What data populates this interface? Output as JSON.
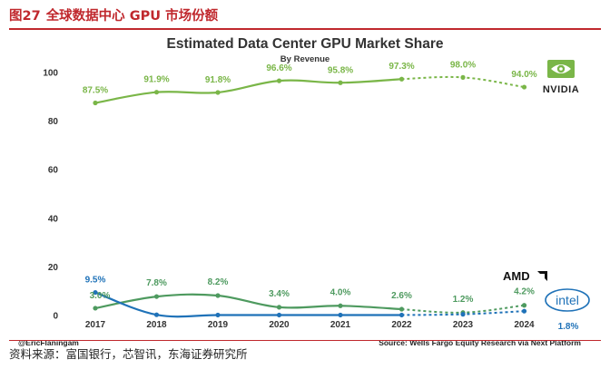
{
  "figure": {
    "number": "图27",
    "caption": "全球数据中心 GPU 市场份额",
    "source_note": "资料来源：富国银行，芯智讯，东海证券研究所"
  },
  "colors": {
    "nvidia": "#7ab648",
    "amd": "#4e9a5f",
    "intel": "#1f72b8",
    "header_red": "#c0282d"
  },
  "logos": {
    "nvidia": "NVIDIA",
    "amd": "AMD",
    "intel": "intel"
  },
  "chart_data": {
    "type": "line",
    "title": "Estimated Data Center GPU Market Share",
    "subtitle": "By Revenue",
    "x": [
      "2017",
      "2018",
      "2019",
      "2020",
      "2021",
      "2022",
      "2023",
      "2024"
    ],
    "ylim": [
      0,
      100
    ],
    "yticks": [
      0,
      20,
      40,
      60,
      80,
      100
    ],
    "grid": false,
    "solid_through": "2022",
    "series": [
      {
        "key": "nvidia",
        "values": [
          87.5,
          91.9,
          91.8,
          96.6,
          95.8,
          97.3,
          98.0,
          94.0
        ],
        "labels": [
          "87.5%",
          "91.9%",
          "91.8%",
          "96.6%",
          "95.8%",
          "97.3%",
          "98.0%",
          "94.0%"
        ]
      },
      {
        "key": "amd",
        "values": [
          3.0,
          7.8,
          8.2,
          3.4,
          4.0,
          2.6,
          1.2,
          4.2
        ],
        "labels": [
          "3.0%",
          "7.8%",
          "8.2%",
          "3.4%",
          "4.0%",
          "2.6%",
          "1.2%",
          "4.2%"
        ]
      },
      {
        "key": "intel",
        "values": [
          9.5,
          0.3,
          0.2,
          0.2,
          0.2,
          0.2,
          0.5,
          1.8
        ],
        "labels": [
          "9.5%",
          "",
          "",
          "",
          "",
          "",
          "",
          "1.8%"
        ]
      }
    ],
    "annotations": {
      "credit": "@EricFlaningam",
      "source": "Source: Wells Fargo Equity Research via Next Platform"
    }
  }
}
